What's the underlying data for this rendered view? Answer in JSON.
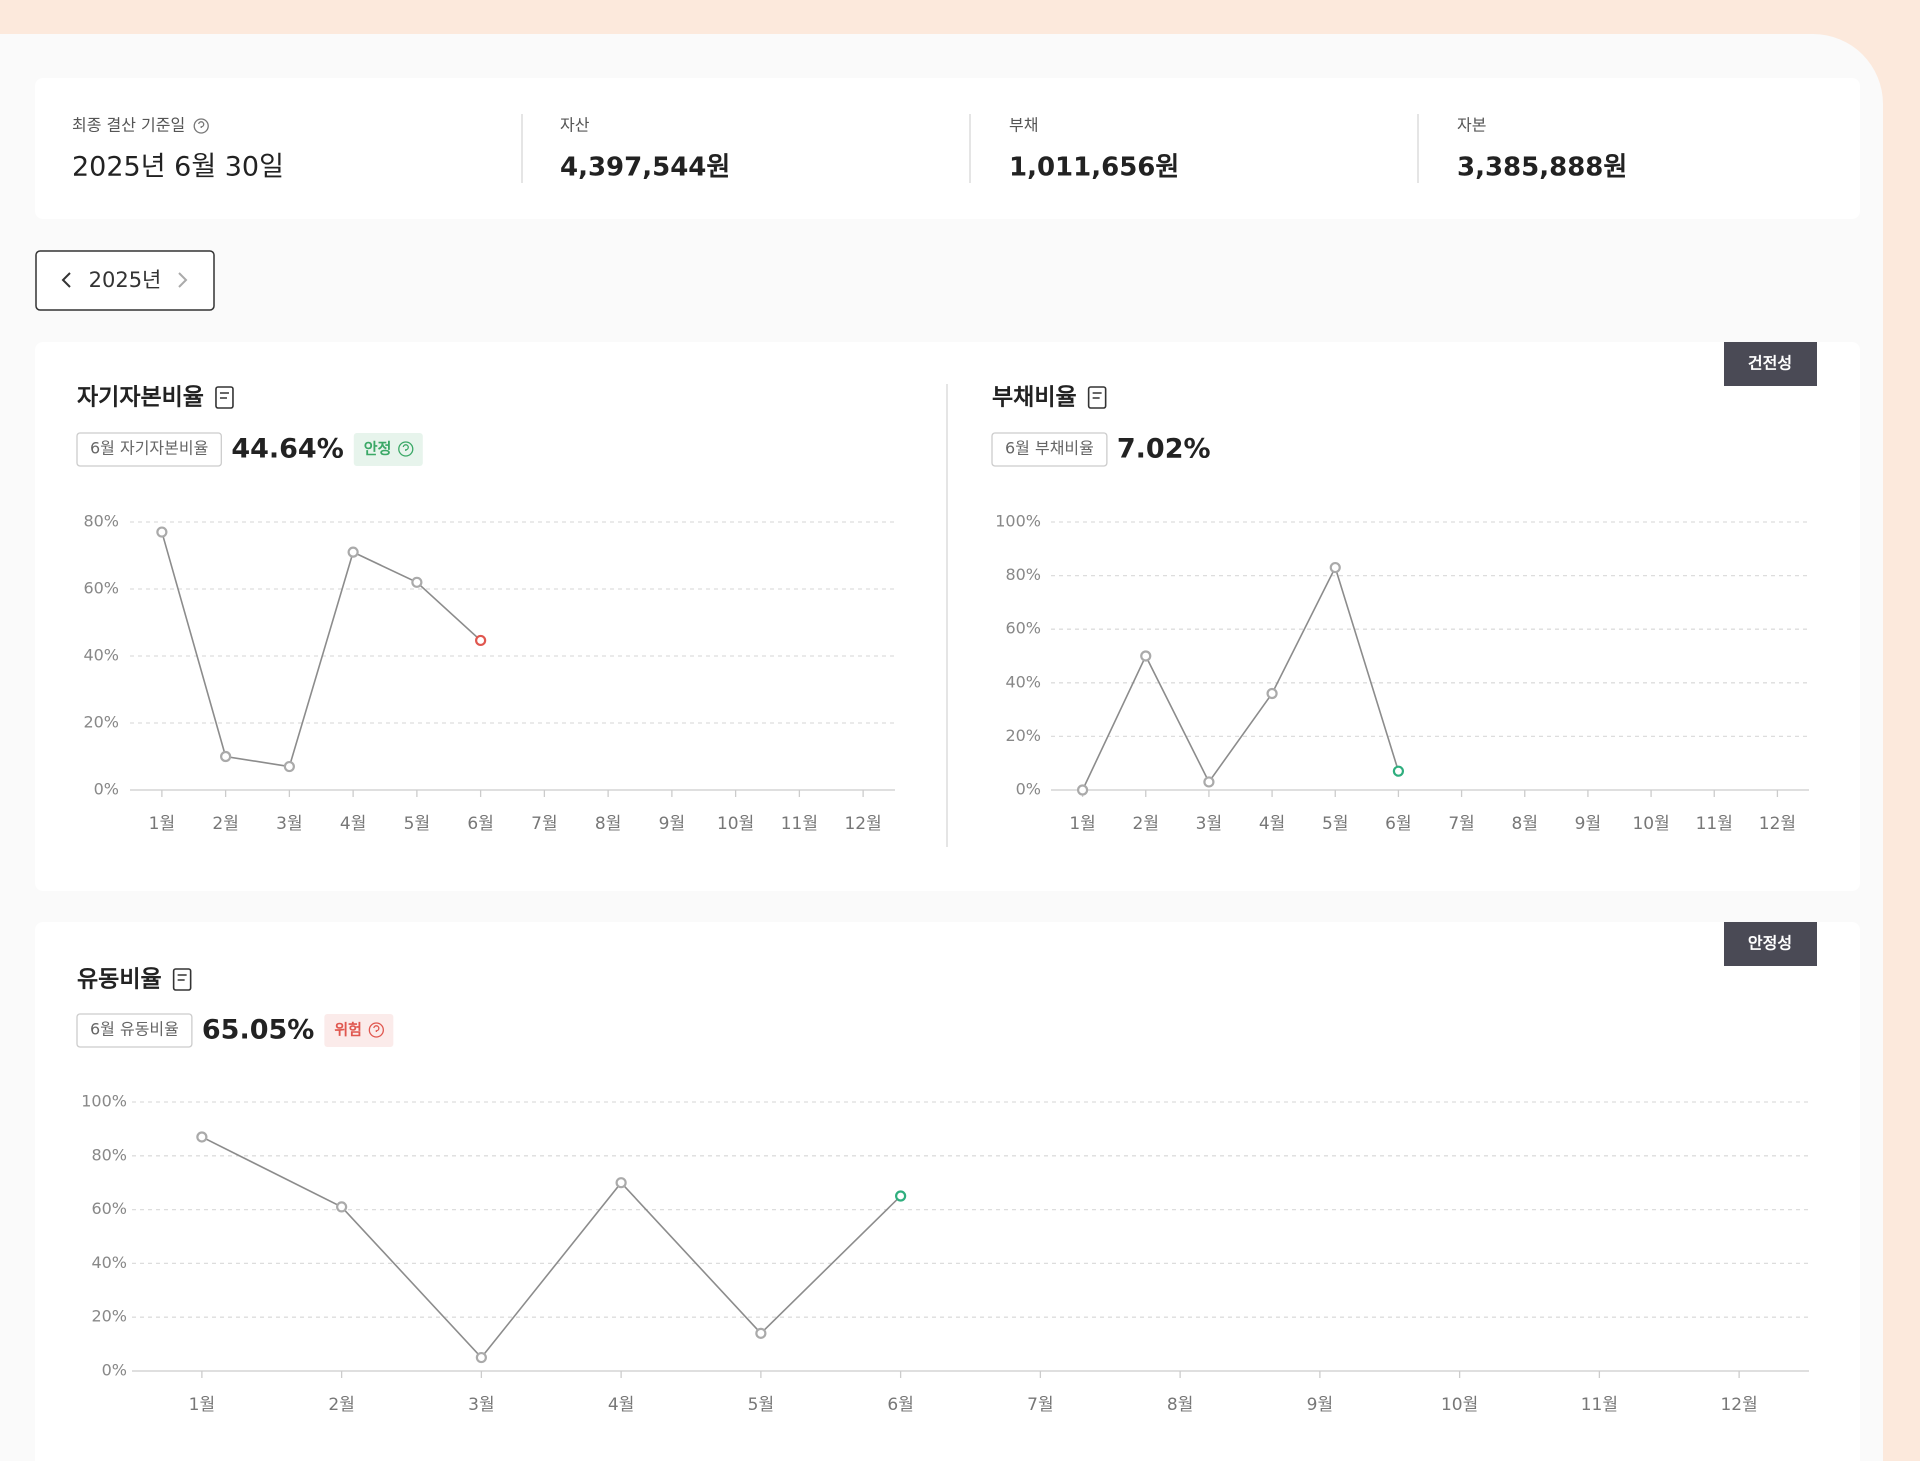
{
  "summary": {
    "items": [
      {
        "label": "최종 결산 기준일",
        "value": "2025년 6월 30일"
      },
      {
        "label": "자산",
        "value": "4,397,544원"
      },
      {
        "label": "부채",
        "value": "1,011,656원"
      },
      {
        "label": "자본",
        "value": "3,385,888원"
      }
    ]
  },
  "year_selector": "2025년",
  "sections": [
    {
      "tag": "건전성"
    },
    {
      "tag": "안정성"
    }
  ],
  "chart_data": [
    {
      "type": "line",
      "title": "자기자본비율",
      "highlight_label": "6월 자기자본비율",
      "highlight_value": "44.64%",
      "status": "안정",
      "status_color": "#3aa866",
      "categories": [
        "1월",
        "2월",
        "3월",
        "4월",
        "5월",
        "6월",
        "7월",
        "8월",
        "9월",
        "10월",
        "11월",
        "12월"
      ],
      "values": [
        77,
        10,
        7,
        71,
        62,
        44.64,
        null,
        null,
        null,
        null,
        null,
        null
      ],
      "color": "#8c8c8c",
      "last_point_color": "#e0574f",
      "ylim": [
        0,
        80
      ],
      "yticks": [
        {
          "value": 0,
          "label": "0%"
        },
        {
          "value": 20,
          "label": "20%"
        },
        {
          "value": 40,
          "label": "40%"
        },
        {
          "value": 60,
          "label": "60%"
        },
        {
          "value": 80,
          "label": "80%"
        }
      ],
      "grid": true
    },
    {
      "type": "line",
      "title": "부채비율",
      "highlight_label": "6월 부채비율",
      "highlight_value": "7.02%",
      "categories": [
        "1월",
        "2월",
        "3월",
        "4월",
        "5월",
        "6월",
        "7월",
        "8월",
        "9월",
        "10월",
        "11월",
        "12월"
      ],
      "values": [
        0,
        50,
        3,
        36,
        83,
        7.02,
        null,
        null,
        null,
        null,
        null,
        null
      ],
      "color": "#8c8c8c",
      "last_point_color": "#2fae7e",
      "ylim": [
        0,
        100
      ],
      "yticks": [
        {
          "value": 0,
          "label": "0%"
        },
        {
          "value": 20,
          "label": "20%"
        },
        {
          "value": 40,
          "label": "40%"
        },
        {
          "value": 60,
          "label": "60%"
        },
        {
          "value": 80,
          "label": "80%"
        },
        {
          "value": 100,
          "label": "100%"
        }
      ],
      "grid": true
    },
    {
      "type": "line",
      "title": "유동비율",
      "highlight_label": "6월 유동비율",
      "highlight_value": "65.05%",
      "status": "위험",
      "status_color": "#e0574f",
      "categories": [
        "1월",
        "2월",
        "3월",
        "4월",
        "5월",
        "6월",
        "7월",
        "8월",
        "9월",
        "10월",
        "11월",
        "12월"
      ],
      "values": [
        87,
        61,
        5,
        70,
        14,
        65.05,
        null,
        null,
        null,
        null,
        null,
        null
      ],
      "color": "#8c8c8c",
      "last_point_color": "#2fae7e",
      "ylim": [
        0,
        100
      ],
      "yticks": [
        {
          "value": 0,
          "label": "0%"
        },
        {
          "value": 20,
          "label": "20%"
        },
        {
          "value": 40,
          "label": "40%"
        },
        {
          "value": 60,
          "label": "60%"
        },
        {
          "value": 80,
          "label": "80%"
        },
        {
          "value": 100,
          "label": "100%"
        }
      ],
      "grid": true
    }
  ]
}
